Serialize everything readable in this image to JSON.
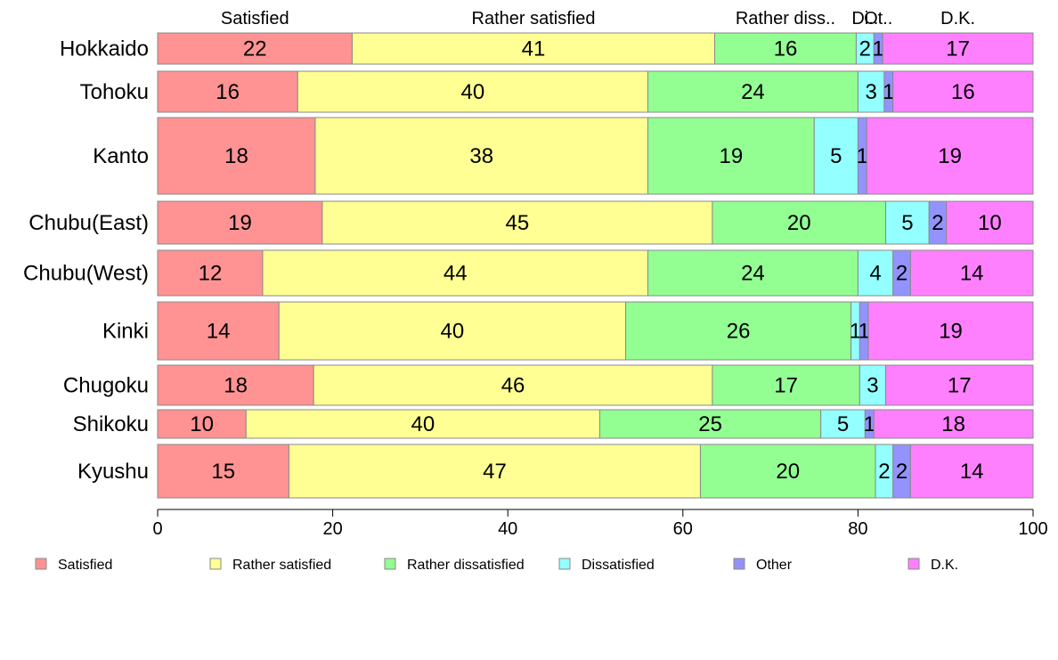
{
  "chart_data": {
    "type": "bar",
    "orientation": "horizontal",
    "stacked": true,
    "normalized_to_100": true,
    "variable_bar_width": true,
    "categories": [
      "Hokkaido",
      "Tohoku",
      "Kanto",
      "Chubu(East)",
      "Chubu(West)",
      "Kinki",
      "Chugoku",
      "Shikoku",
      "Kyushu"
    ],
    "series": [
      {
        "name": "Satisfied",
        "color": "#ff9393",
        "values": [
          22,
          16,
          18,
          19,
          12,
          14,
          18,
          10,
          15
        ]
      },
      {
        "name": "Rather satisfied",
        "color": "#ffff93",
        "values": [
          41,
          40,
          38,
          45,
          44,
          40,
          46,
          40,
          47
        ]
      },
      {
        "name": "Rather dissatisfied",
        "color": "#93ff93",
        "values": [
          16,
          24,
          19,
          20,
          24,
          26,
          17,
          25,
          20
        ]
      },
      {
        "name": "Dissatisfied",
        "color": "#93ffff",
        "values": [
          2,
          3,
          5,
          5,
          4,
          1,
          3,
          5,
          2
        ]
      },
      {
        "name": "Other",
        "color": "#9393ff",
        "values": [
          1,
          1,
          1,
          2,
          2,
          1,
          0,
          1,
          2
        ]
      },
      {
        "name": "D.K.",
        "color": "#ff80ff",
        "values": [
          17,
          16,
          19,
          10,
          14,
          19,
          17,
          18,
          14
        ]
      }
    ],
    "top_labels": [
      "Satisfied",
      "Rather satisfied",
      "Rather diss..",
      "Di..",
      "Ot..",
      "D.K."
    ],
    "xlim": [
      0,
      100
    ],
    "xticks": [
      0,
      20,
      40,
      60,
      80,
      100
    ],
    "grid": false,
    "legend_position": "bottom",
    "bar_border_color": "#8a8a8a"
  }
}
